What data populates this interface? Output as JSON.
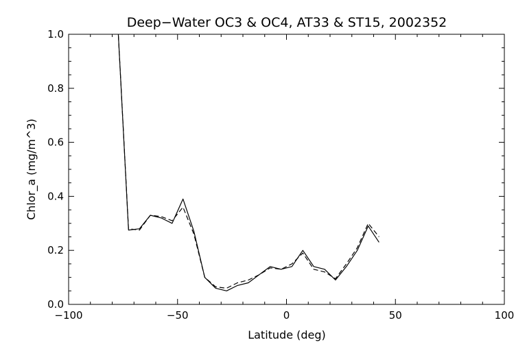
{
  "chart_data": {
    "type": "line",
    "title": "Deep−Water OC3 & OC4, AT33 & ST15, 2002352",
    "xlabel": "Latitude (deg)",
    "ylabel": "Chlor_a (mg/m^3)",
    "xlim": [
      -100,
      100
    ],
    "ylim": [
      0,
      1
    ],
    "xticks": [
      -100,
      -50,
      0,
      50,
      100
    ],
    "xtick_labels": [
      "−100",
      "−50",
      "0",
      "50",
      "100"
    ],
    "yticks": [
      0,
      0.2,
      0.4,
      0.6,
      0.8,
      1.0
    ],
    "ytick_labels": [
      "0.0",
      "0.2",
      "0.4",
      "0.6",
      "0.8",
      "1.0"
    ],
    "grid": false,
    "series": [
      {
        "style": "solid",
        "x": [
          -77.5,
          -72.5,
          -67.5,
          -62.5,
          -57.5,
          -52.5,
          -47.5,
          -42.5,
          -37.5,
          -32.5,
          -27.5,
          -22.5,
          -17.5,
          -12.5,
          -7.5,
          -2.5,
          2.5,
          7.5,
          12.5,
          17.5,
          22.5,
          27.5,
          32.5,
          37.5,
          42.5
        ],
        "y": [
          1.05,
          0.275,
          0.28,
          0.33,
          0.32,
          0.3,
          0.39,
          0.27,
          0.1,
          0.06,
          0.05,
          0.07,
          0.08,
          0.11,
          0.14,
          0.13,
          0.14,
          0.2,
          0.14,
          0.13,
          0.09,
          0.14,
          0.2,
          0.29,
          0.23
        ]
      },
      {
        "style": "dashed",
        "x": [
          -77.5,
          -72.5,
          -67.5,
          -62.5,
          -57.5,
          -52.5,
          -47.5,
          -42.5,
          -37.5,
          -32.5,
          -27.5,
          -22.5,
          -17.5,
          -12.5,
          -7.5,
          -2.5,
          2.5,
          7.5,
          12.5,
          17.5,
          22.5,
          27.5,
          32.5,
          37.5,
          42.5
        ],
        "y": [
          1.05,
          0.28,
          0.275,
          0.33,
          0.325,
          0.31,
          0.36,
          0.26,
          0.1,
          0.065,
          0.06,
          0.08,
          0.09,
          0.11,
          0.135,
          0.13,
          0.15,
          0.19,
          0.13,
          0.12,
          0.095,
          0.15,
          0.21,
          0.3,
          0.25
        ]
      }
    ]
  }
}
